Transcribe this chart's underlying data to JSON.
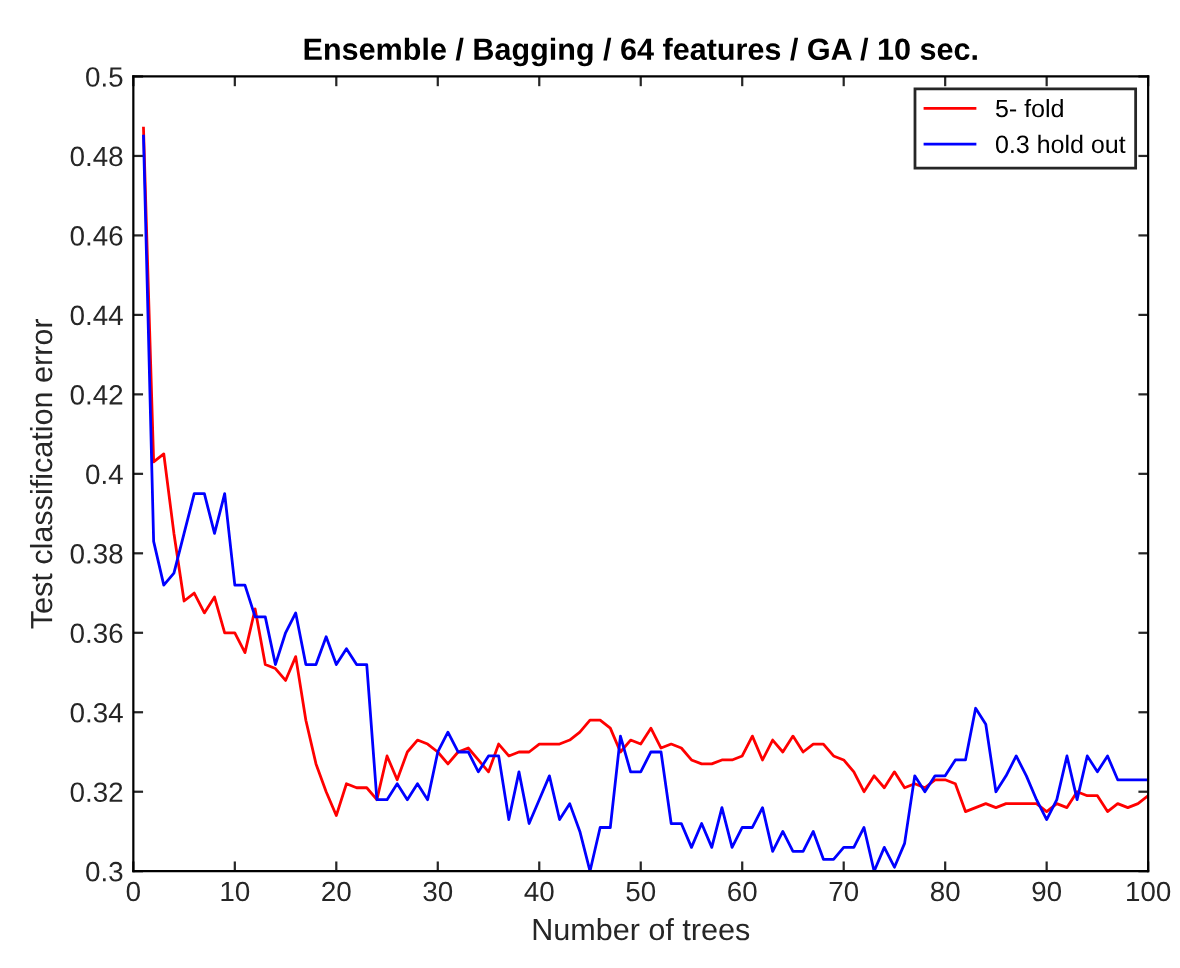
{
  "chart_data": {
    "type": "line",
    "title": "Ensemble / Bagging / 64 features / GA / 10 sec.",
    "xlabel": "Number of trees",
    "ylabel": "Test classification error",
    "x": [
      1,
      2,
      3,
      4,
      5,
      6,
      7,
      8,
      9,
      10,
      11,
      12,
      13,
      14,
      15,
      16,
      17,
      18,
      19,
      20,
      21,
      22,
      23,
      24,
      25,
      26,
      27,
      28,
      29,
      30,
      31,
      32,
      33,
      34,
      35,
      36,
      37,
      38,
      39,
      40,
      41,
      42,
      43,
      44,
      45,
      46,
      47,
      48,
      49,
      50,
      51,
      52,
      53,
      54,
      55,
      56,
      57,
      58,
      59,
      60,
      61,
      62,
      63,
      64,
      65,
      66,
      67,
      68,
      69,
      70,
      71,
      72,
      73,
      74,
      75,
      76,
      77,
      78,
      79,
      80,
      81,
      82,
      83,
      84,
      85,
      86,
      87,
      88,
      89,
      90,
      91,
      92,
      93,
      94,
      95,
      96,
      97,
      98,
      99,
      100
    ],
    "series": [
      {
        "name": "5- fold",
        "color": "#ff0000",
        "values": [
          0.487,
          0.403,
          0.405,
          0.385,
          0.368,
          0.37,
          0.365,
          0.369,
          0.36,
          0.36,
          0.355,
          0.366,
          0.352,
          0.351,
          0.348,
          0.354,
          0.338,
          0.327,
          0.32,
          0.314,
          0.322,
          0.321,
          0.321,
          0.318,
          0.329,
          0.323,
          0.33,
          0.333,
          0.332,
          0.33,
          0.327,
          0.33,
          0.331,
          0.328,
          0.325,
          0.332,
          0.329,
          0.33,
          0.33,
          0.332,
          0.332,
          0.332,
          0.333,
          0.335,
          0.338,
          0.338,
          0.336,
          0.33,
          0.333,
          0.332,
          0.336,
          0.331,
          0.332,
          0.331,
          0.328,
          0.327,
          0.327,
          0.328,
          0.328,
          0.329,
          0.334,
          0.328,
          0.333,
          0.33,
          0.334,
          0.33,
          0.332,
          0.332,
          0.329,
          0.328,
          0.325,
          0.32,
          0.324,
          0.321,
          0.325,
          0.321,
          0.322,
          0.321,
          0.323,
          0.323,
          0.322,
          0.315,
          0.316,
          0.317,
          0.316,
          0.317,
          0.317,
          0.317,
          0.317,
          0.315,
          0.317,
          0.316,
          0.32,
          0.319,
          0.319,
          0.315,
          0.317,
          0.316,
          0.317,
          0.319
        ]
      },
      {
        "name": "0.3 hold out",
        "color": "#0000ff",
        "values": [
          0.485,
          0.383,
          0.372,
          0.375,
          0.385,
          0.395,
          0.395,
          0.385,
          0.395,
          0.372,
          0.372,
          0.364,
          0.364,
          0.352,
          0.36,
          0.365,
          0.352,
          0.352,
          0.359,
          0.352,
          0.356,
          0.352,
          0.352,
          0.318,
          0.318,
          0.322,
          0.318,
          0.322,
          0.318,
          0.33,
          0.335,
          0.33,
          0.33,
          0.325,
          0.329,
          0.329,
          0.313,
          0.325,
          0.312,
          0.318,
          0.324,
          0.313,
          0.317,
          0.31,
          0.3,
          0.311,
          0.311,
          0.334,
          0.325,
          0.325,
          0.33,
          0.33,
          0.312,
          0.312,
          0.306,
          0.312,
          0.306,
          0.316,
          0.306,
          0.311,
          0.311,
          0.316,
          0.305,
          0.31,
          0.305,
          0.305,
          0.31,
          0.303,
          0.303,
          0.306,
          0.306,
          0.311,
          0.3,
          0.306,
          0.301,
          0.307,
          0.324,
          0.32,
          0.324,
          0.324,
          0.328,
          0.328,
          0.341,
          0.337,
          0.32,
          0.324,
          0.329,
          0.324,
          0.318,
          0.313,
          0.318,
          0.329,
          0.318,
          0.329,
          0.325,
          0.329,
          0.323,
          0.323,
          0.323,
          0.323
        ]
      }
    ],
    "xlim": [
      0,
      100
    ],
    "xticks": [
      0,
      10,
      20,
      30,
      40,
      50,
      60,
      70,
      80,
      90,
      100
    ],
    "ylim": [
      0.3,
      0.5
    ],
    "yticks": [
      0.3,
      0.32,
      0.34,
      0.36,
      0.38,
      0.4,
      0.42,
      0.44,
      0.46,
      0.48,
      0.5
    ],
    "grid": false,
    "legend": "top right"
  }
}
